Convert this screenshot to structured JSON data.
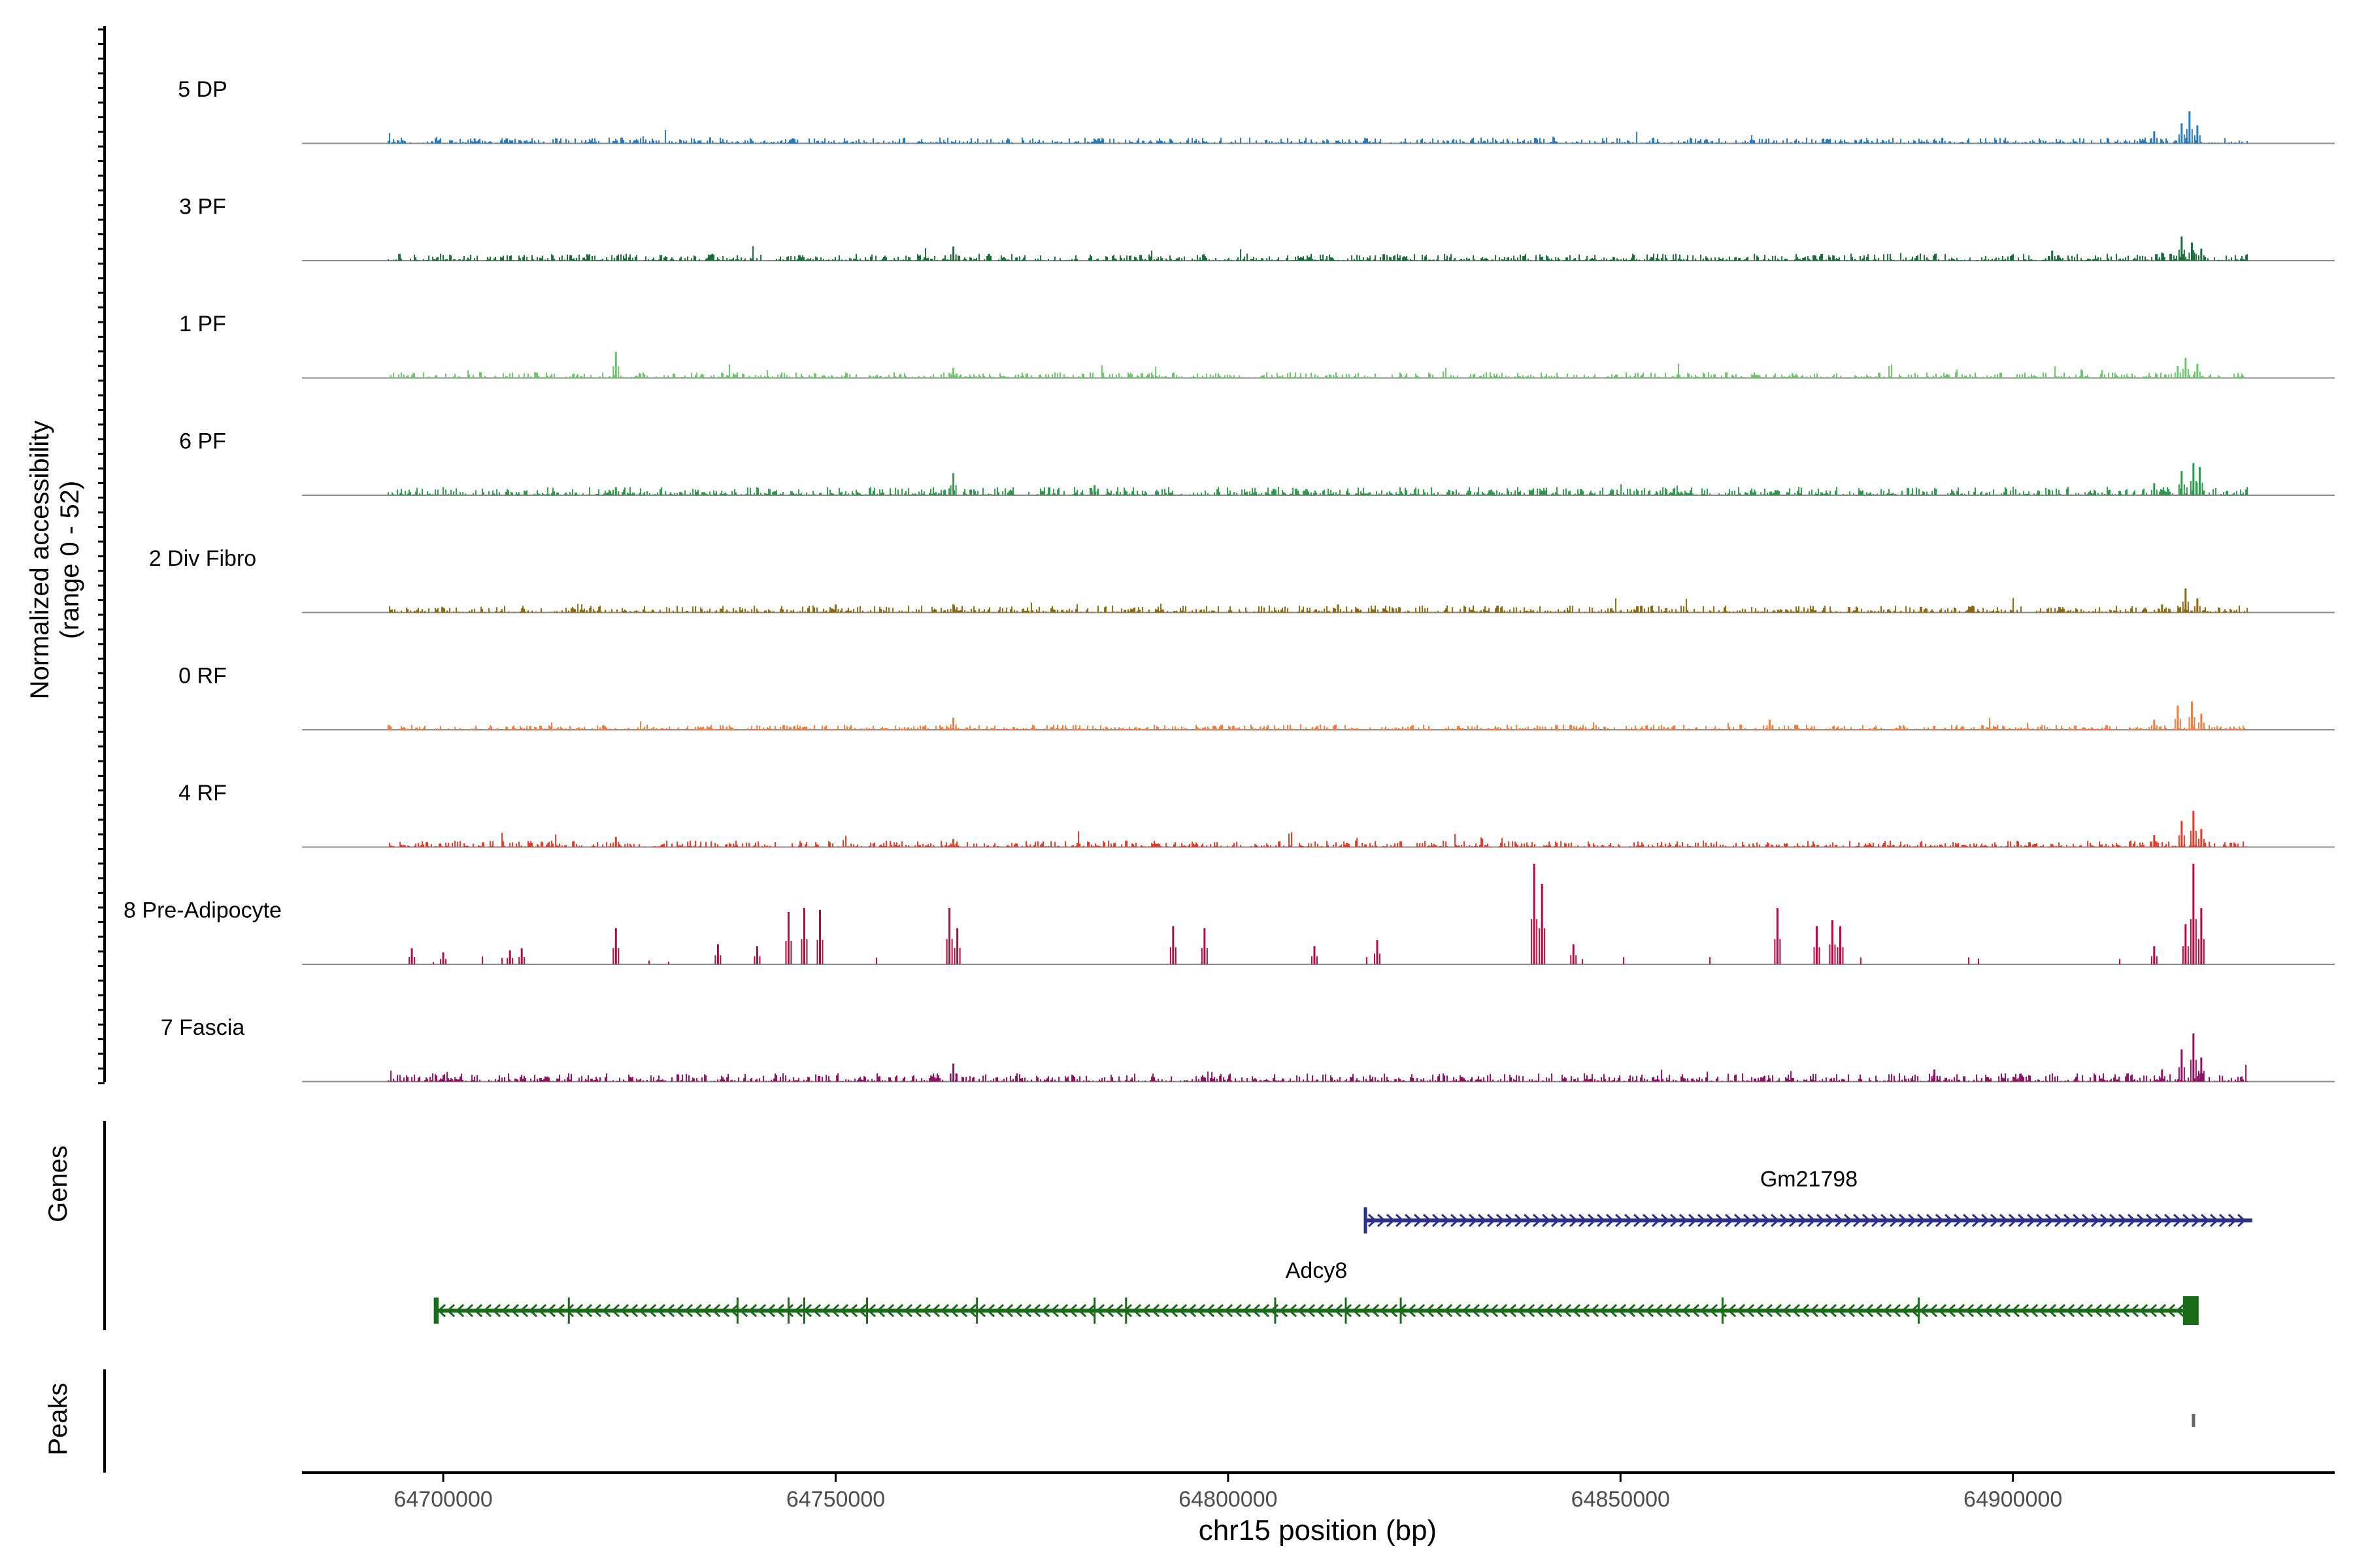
{
  "chart_data": {
    "type": "area",
    "ylabel_line1": "Normalized accessibility",
    "ylabel_line2": "(range 0 - 52)",
    "ylim": [
      0,
      52
    ],
    "xlabel": "chr15 position (bp)",
    "xlim": [
      64682000,
      64941000
    ],
    "xticks": [
      64700000,
      64750000,
      64800000,
      64850000,
      64900000
    ],
    "xtick_labels": [
      "64700000",
      "64750000",
      "64800000",
      "64850000",
      "64900000"
    ],
    "tracks_start": 64693000,
    "tracks_end": 64930000,
    "series": [
      {
        "name": "5 DP",
        "color": "#2b7bba",
        "base": 0.9,
        "peaks": [
          [
            64704000,
            2.5
          ],
          [
            64734000,
            3
          ],
          [
            64891000,
            2.8
          ],
          [
            64918000,
            6
          ],
          [
            64921500,
            10
          ],
          [
            64922500,
            16
          ],
          [
            64923500,
            9
          ]
        ]
      },
      {
        "name": "3 PF",
        "color": "#1e6b3a",
        "base": 1.1,
        "peaks": [
          [
            64765000,
            7
          ],
          [
            64905000,
            5
          ],
          [
            64919000,
            4
          ],
          [
            64921500,
            12
          ],
          [
            64922800,
            9
          ],
          [
            64924000,
            6
          ]
        ]
      },
      {
        "name": "1 PF",
        "color": "#6cc56c",
        "base": 0.9,
        "peaks": [
          [
            64722000,
            13
          ],
          [
            64765000,
            5
          ],
          [
            64921000,
            6
          ],
          [
            64922000,
            10
          ],
          [
            64923500,
            7
          ]
        ]
      },
      {
        "name": "6 PF",
        "color": "#2e9a4e",
        "base": 1.3,
        "peaks": [
          [
            64722000,
            4
          ],
          [
            64765000,
            11
          ],
          [
            64783000,
            5
          ],
          [
            64918000,
            6
          ],
          [
            64921500,
            12
          ],
          [
            64923000,
            16
          ],
          [
            64923800,
            14
          ]
        ]
      },
      {
        "name": "2 Div Fibro",
        "color": "#8b6a12",
        "base": 1.1,
        "peaks": [
          [
            64750000,
            4
          ],
          [
            64765000,
            4
          ],
          [
            64814000,
            4
          ],
          [
            64919000,
            4
          ],
          [
            64922000,
            12
          ],
          [
            64923500,
            7
          ]
        ]
      },
      {
        "name": "0 RF",
        "color": "#f07c40",
        "base": 0.8,
        "peaks": [
          [
            64765000,
            6
          ],
          [
            64869000,
            5
          ],
          [
            64918000,
            5
          ],
          [
            64921000,
            12
          ],
          [
            64922800,
            14
          ],
          [
            64924000,
            8
          ]
        ]
      },
      {
        "name": "4 RF",
        "color": "#e03c28",
        "base": 1.0,
        "peaks": [
          [
            64722000,
            5
          ],
          [
            64765000,
            4
          ],
          [
            64918000,
            6
          ],
          [
            64921500,
            13
          ],
          [
            64923000,
            18
          ],
          [
            64924000,
            9
          ]
        ]
      },
      {
        "name": "8 Pre-Adipocyte",
        "color": "#b30c3d",
        "base": 0.0,
        "peaks": [
          [
            64696000,
            8
          ],
          [
            64700000,
            6
          ],
          [
            64708500,
            7
          ],
          [
            64710000,
            8
          ],
          [
            64722000,
            18
          ],
          [
            64735000,
            10
          ],
          [
            64740000,
            9
          ],
          [
            64744000,
            26
          ],
          [
            64746000,
            28
          ],
          [
            64748000,
            27
          ],
          [
            64764500,
            28
          ],
          [
            64765500,
            18
          ],
          [
            64793000,
            19
          ],
          [
            64797000,
            18
          ],
          [
            64811000,
            9
          ],
          [
            64819000,
            12
          ],
          [
            64839000,
            50
          ],
          [
            64840000,
            40
          ],
          [
            64844000,
            10
          ],
          [
            64870000,
            28
          ],
          [
            64875000,
            19
          ],
          [
            64877000,
            22
          ],
          [
            64878000,
            19
          ],
          [
            64918000,
            9
          ],
          [
            64922000,
            20
          ],
          [
            64923000,
            50
          ],
          [
            64924000,
            28
          ]
        ]
      },
      {
        "name": "7 Fascia",
        "color": "#8e1362",
        "base": 1.3,
        "peaks": [
          [
            64765000,
            9
          ],
          [
            64890000,
            6
          ],
          [
            64901000,
            4
          ],
          [
            64919000,
            6
          ],
          [
            64921500,
            16
          ],
          [
            64923000,
            24
          ],
          [
            64924000,
            12
          ]
        ]
      }
    ],
    "genes_label": "Genes",
    "genes": [
      {
        "name": "Gm21798",
        "start": 64817500,
        "end": 64930500,
        "strand": "+",
        "color": "#2b2f8f"
      },
      {
        "name": "Adcy8",
        "start": 64699000,
        "end": 64923500,
        "strand": "-",
        "color": "#1a6b1a",
        "exons": [
          64699300,
          64716000,
          64737500,
          64744000,
          64746000,
          64754000,
          64768000,
          64783000,
          64787000,
          64806000,
          64815000,
          64822000,
          64863000,
          64888000
        ]
      }
    ],
    "peaks_label": "Peaks",
    "peak_regions": [
      [
        64922800,
        64923200
      ]
    ]
  }
}
